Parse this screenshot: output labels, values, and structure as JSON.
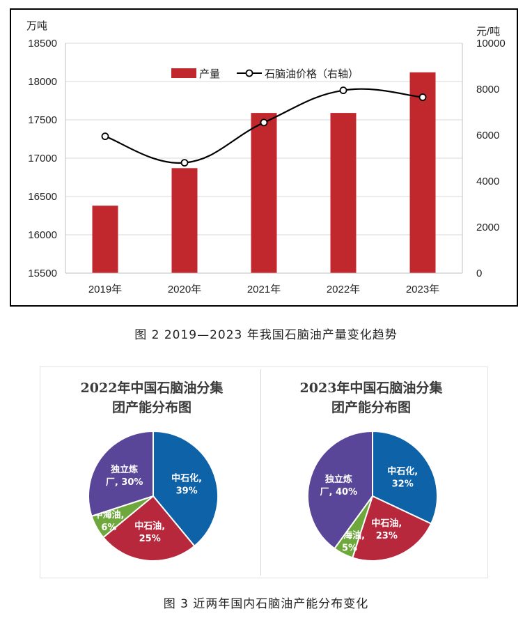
{
  "chart_data": [
    {
      "type": "bar+line",
      "categories": [
        "2019年",
        "2020年",
        "2021年",
        "2022年",
        "2023年"
      ],
      "series": [
        {
          "name": "产量",
          "type": "bar",
          "axis": "left",
          "values": [
            16380,
            16870,
            17590,
            17590,
            18120
          ],
          "color": "#c0282d"
        },
        {
          "name": "石脑油价格（右轴）",
          "type": "line",
          "axis": "right",
          "values": [
            5950,
            4800,
            6550,
            7950,
            7650
          ],
          "color": "#000000"
        }
      ],
      "left_axis": {
        "unit": "万吨",
        "ticks": [
          "18500",
          "18000",
          "17500",
          "17000",
          "16500",
          "16000",
          "15500"
        ],
        "ylim": [
          15500,
          18500
        ]
      },
      "right_axis": {
        "unit": "元/吨",
        "ticks": [
          "10000",
          "8000",
          "6000",
          "4000",
          "2000",
          "0"
        ],
        "ylim": [
          0,
          10000
        ]
      },
      "legend_position": "top"
    },
    {
      "type": "pie",
      "title_lines": [
        "2022年中国石脑油分集",
        "团产能分布图"
      ],
      "slices": [
        {
          "label_lines": [
            "中石化,",
            "39%"
          ],
          "value": 39,
          "color": "#0d62a8"
        },
        {
          "label_lines": [
            "中石油,",
            "25%"
          ],
          "value": 25,
          "color": "#b8283c"
        },
        {
          "label_lines": [
            "中海油,",
            "6%"
          ],
          "value": 6,
          "color": "#6ea83c"
        },
        {
          "label_lines": [
            "独立炼",
            "厂, 30%"
          ],
          "value": 30,
          "color": "#5a4698"
        }
      ]
    },
    {
      "type": "pie",
      "title_lines": [
        "2023年中国石脑油分集",
        "团产能分布图"
      ],
      "slices": [
        {
          "label_lines": [
            "中石化,",
            "32%"
          ],
          "value": 32,
          "color": "#0d62a8"
        },
        {
          "label_lines": [
            "中石油,",
            "23%"
          ],
          "value": 23,
          "color": "#b8283c"
        },
        {
          "label_lines": [
            "中海油,",
            "5%"
          ],
          "value": 5,
          "color": "#6ea83c"
        },
        {
          "label_lines": [
            "独立炼",
            "厂, 40%"
          ],
          "value": 40,
          "color": "#5a4698"
        }
      ]
    }
  ],
  "captions": {
    "figure2": "图 2  2019—2023 年我国石脑油产量变化趋势",
    "figure3": "图 3  近两年国内石脑油产能分布变化"
  }
}
